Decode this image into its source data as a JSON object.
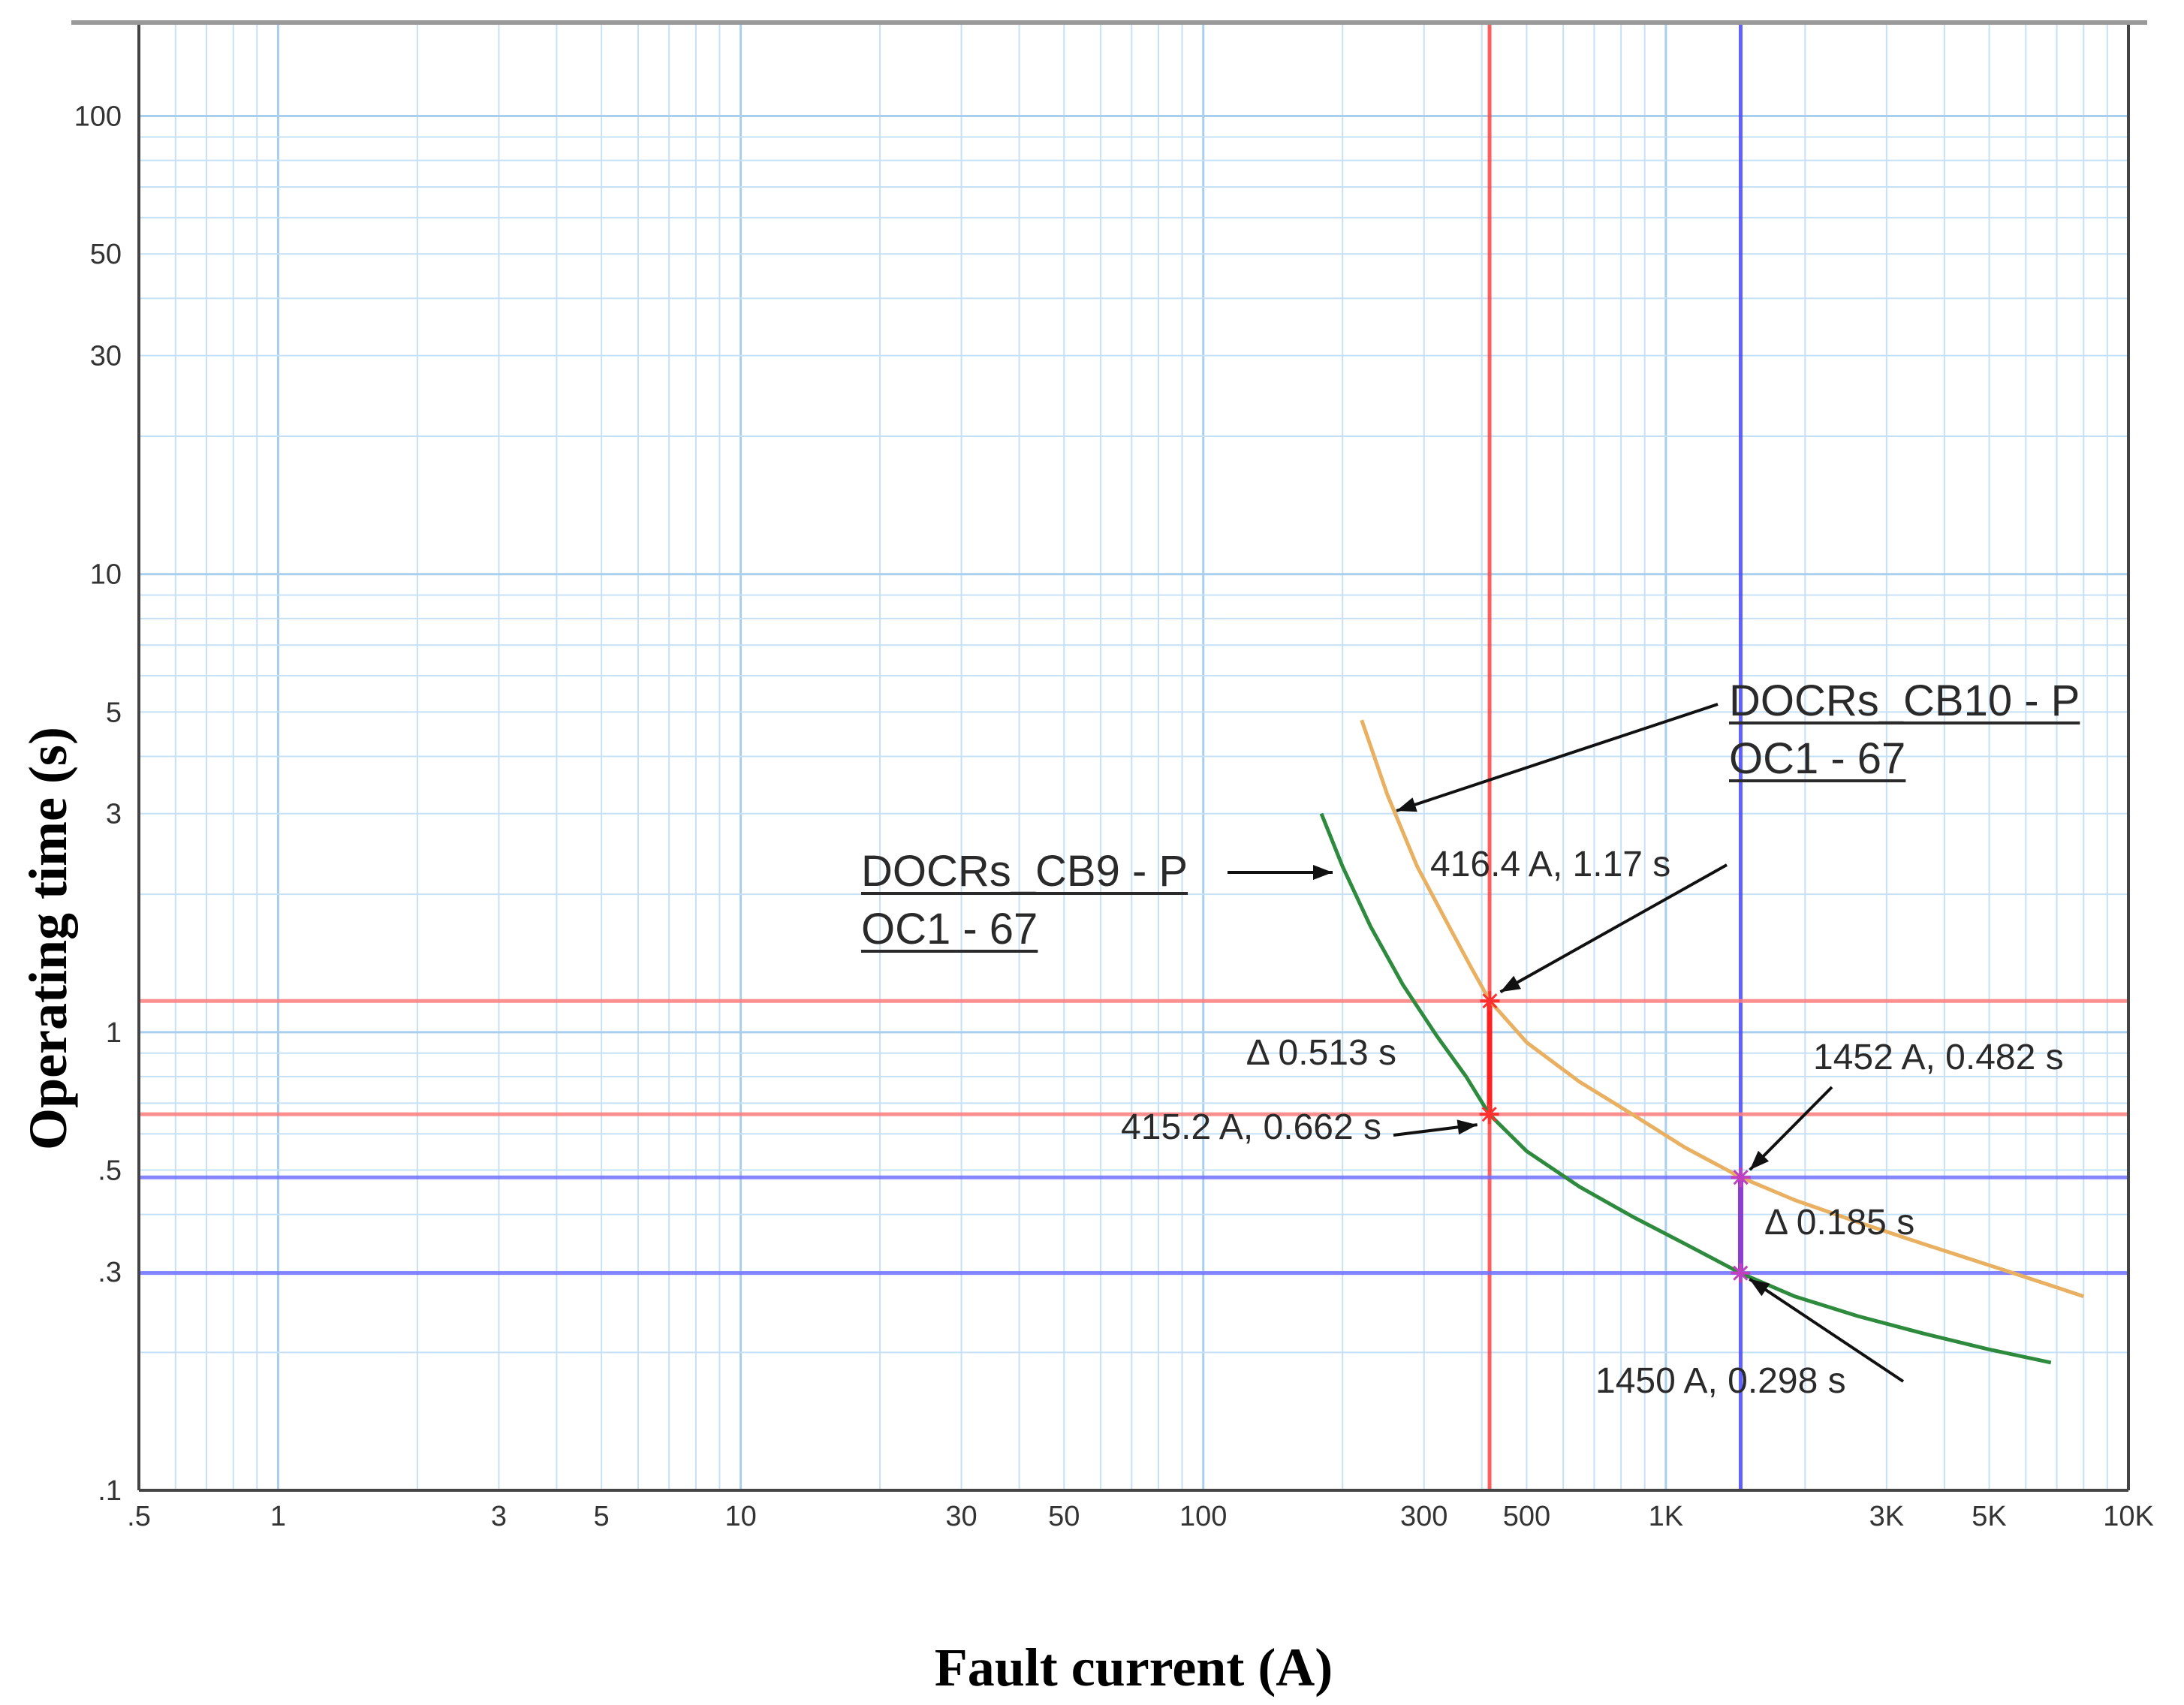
{
  "chart_data": {
    "type": "line",
    "xlabel": "Fault current (A)",
    "ylabel": "Operating time (s)",
    "x_scale": "log",
    "y_scale": "log",
    "xlim": [
      0.5,
      10000
    ],
    "ylim": [
      0.1,
      160
    ],
    "grid": true,
    "x_ticks": [
      {
        "value": 0.5,
        "label": ".5"
      },
      {
        "value": 1,
        "label": "1"
      },
      {
        "value": 3,
        "label": "3"
      },
      {
        "value": 5,
        "label": "5"
      },
      {
        "value": 10,
        "label": "10"
      },
      {
        "value": 30,
        "label": "30"
      },
      {
        "value": 50,
        "label": "50"
      },
      {
        "value": 100,
        "label": "100"
      },
      {
        "value": 300,
        "label": "300"
      },
      {
        "value": 500,
        "label": "500"
      },
      {
        "value": 1000,
        "label": "1K"
      },
      {
        "value": 3000,
        "label": "3K"
      },
      {
        "value": 5000,
        "label": "5K"
      },
      {
        "value": 10000,
        "label": "10K"
      }
    ],
    "y_ticks": [
      {
        "value": 0.1,
        "label": ".1"
      },
      {
        "value": 0.3,
        "label": ".3"
      },
      {
        "value": 0.5,
        "label": ".5"
      },
      {
        "value": 1,
        "label": "1"
      },
      {
        "value": 3,
        "label": "3"
      },
      {
        "value": 5,
        "label": "5"
      },
      {
        "value": 10,
        "label": "10"
      },
      {
        "value": 30,
        "label": "30"
      },
      {
        "value": 50,
        "label": "50"
      },
      {
        "value": 100,
        "label": "100"
      }
    ],
    "series": [
      {
        "name": "DOCRs_CB9 - P OC1 - 67",
        "color": "#2e8b3e",
        "x": [
          180,
          200,
          230,
          270,
          320,
          370,
          415.2,
          500,
          650,
          850,
          1100,
          1450,
          1900,
          2600,
          3600,
          5000,
          6800
        ],
        "y": [
          3.0,
          2.3,
          1.7,
          1.27,
          0.98,
          0.8,
          0.662,
          0.55,
          0.46,
          0.395,
          0.345,
          0.298,
          0.265,
          0.24,
          0.22,
          0.203,
          0.19
        ]
      },
      {
        "name": "DOCRs_CB10 - P OC1 - 67",
        "color": "#e8b060",
        "x": [
          220,
          250,
          290,
          340,
          380,
          416.4,
          500,
          650,
          850,
          1100,
          1452,
          1900,
          2600,
          3600,
          5000,
          6800,
          8000
        ],
        "y": [
          4.8,
          3.3,
          2.3,
          1.7,
          1.38,
          1.17,
          0.95,
          0.78,
          0.66,
          0.56,
          0.482,
          0.43,
          0.385,
          0.345,
          0.31,
          0.28,
          0.265
        ]
      }
    ],
    "reference_lines": [
      {
        "orientation": "vertical",
        "value": 415.8,
        "color": "#ff4d4d"
      },
      {
        "orientation": "vertical",
        "value": 1451,
        "color": "#5050ff"
      },
      {
        "orientation": "horizontal",
        "value": 1.17,
        "color": "#ff7b7b"
      },
      {
        "orientation": "horizontal",
        "value": 0.662,
        "color": "#ff7b7b"
      },
      {
        "orientation": "horizontal",
        "value": 0.482,
        "color": "#7070ff"
      },
      {
        "orientation": "horizontal",
        "value": 0.298,
        "color": "#7070ff"
      }
    ],
    "markers": [
      {
        "x": 416.4,
        "y": 1.17,
        "label": "416.4 A, 1.17 s",
        "color": "#ff3030"
      },
      {
        "x": 415.2,
        "y": 0.662,
        "label": "415.2 A, 0.662 s",
        "color": "#ff3030"
      },
      {
        "x": 1452,
        "y": 0.482,
        "label": "1452 A, 0.482 s",
        "color": "#c040c0"
      },
      {
        "x": 1450,
        "y": 0.298,
        "label": "1450 A, 0.298 s",
        "color": "#c040c0"
      }
    ],
    "deltas": [
      {
        "label": "Δ 0.513 s",
        "x": 415.8,
        "y_from": 0.662,
        "y_to": 1.17
      },
      {
        "label": "Δ 0.185 s",
        "x": 1451,
        "y_from": 0.298,
        "y_to": 0.482
      }
    ],
    "annotations": [
      {
        "id": "cb10",
        "lines": [
          "DOCRs_CB10 - P",
          "OC1 - 67"
        ],
        "underline": true
      },
      {
        "id": "cb9",
        "lines": [
          "DOCRs_CB9 - P",
          "OC1 - 67"
        ],
        "underline": true
      }
    ]
  }
}
